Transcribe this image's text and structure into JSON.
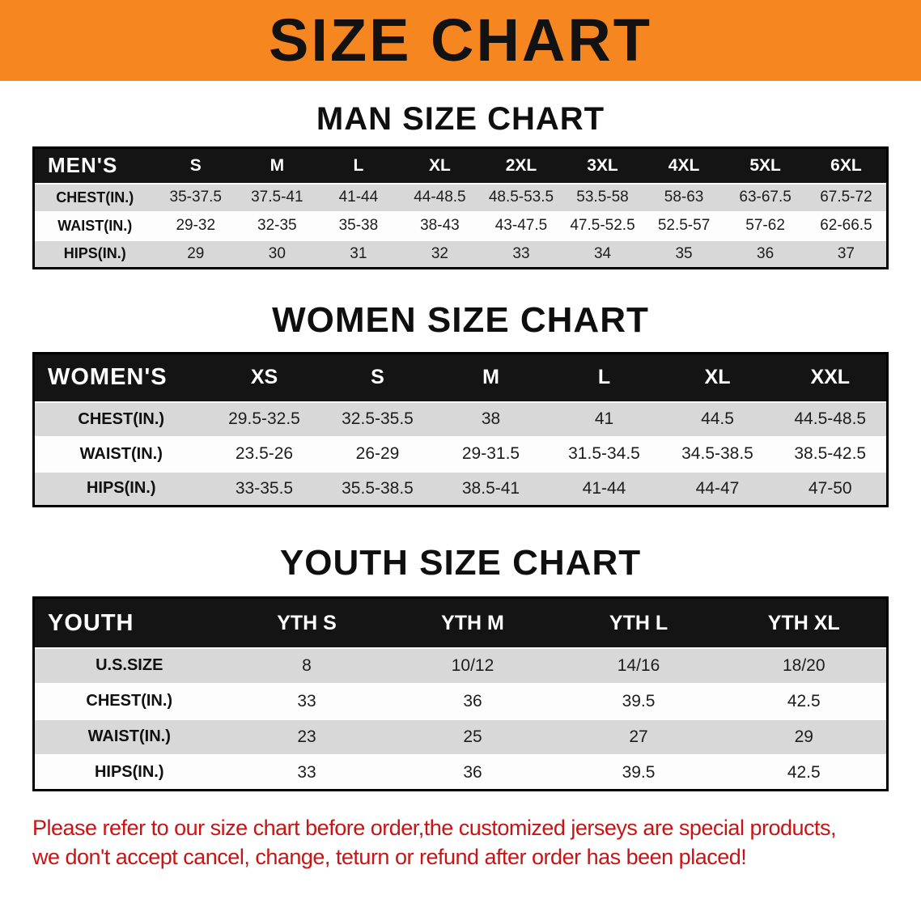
{
  "banner": {
    "title": "SIZE CHART"
  },
  "colors": {
    "banner_bg": "#f6861f",
    "header_bg": "#141414",
    "stripe": "#d8d8d8",
    "disclaimer_red": "#c81414"
  },
  "sections": [
    {
      "id": "men",
      "title": "MAN SIZE CHART",
      "table": {
        "header": [
          "MEN'S",
          "S",
          "M",
          "L",
          "XL",
          "2XL",
          "3XL",
          "4XL",
          "5XL",
          "6XL"
        ],
        "rows": [
          [
            "CHEST(IN.)",
            "35-37.5",
            "37.5-41",
            "41-44",
            "44-48.5",
            "48.5-53.5",
            "53.5-58",
            "58-63",
            "63-67.5",
            "67.5-72"
          ],
          [
            "WAIST(IN.)",
            "29-32",
            "32-35",
            "35-38",
            "38-43",
            "43-47.5",
            "47.5-52.5",
            "52.5-57",
            "57-62",
            "62-66.5"
          ],
          [
            "HIPS(IN.)",
            "29",
            "30",
            "31",
            "32",
            "33",
            "34",
            "35",
            "36",
            "37"
          ]
        ]
      }
    },
    {
      "id": "women",
      "title": "WOMEN SIZE CHART",
      "table": {
        "header": [
          "WOMEN'S",
          "XS",
          "S",
          "M",
          "L",
          "XL",
          "XXL"
        ],
        "rows": [
          [
            "CHEST(IN.)",
            "29.5-32.5",
            "32.5-35.5",
            "38",
            "41",
            "44.5",
            "44.5-48.5"
          ],
          [
            "WAIST(IN.)",
            "23.5-26",
            "26-29",
            "29-31.5",
            "31.5-34.5",
            "34.5-38.5",
            "38.5-42.5"
          ],
          [
            "HIPS(IN.)",
            "33-35.5",
            "35.5-38.5",
            "38.5-41",
            "41-44",
            "44-47",
            "47-50"
          ]
        ]
      }
    },
    {
      "id": "youth",
      "title": "YOUTH SIZE CHART",
      "table": {
        "header": [
          "YOUTH",
          "YTH S",
          "YTH M",
          "YTH L",
          "YTH XL"
        ],
        "rows": [
          [
            "U.S.SIZE",
            "8",
            "10/12",
            "14/16",
            "18/20"
          ],
          [
            "CHEST(IN.)",
            "33",
            "36",
            "39.5",
            "42.5"
          ],
          [
            "WAIST(IN.)",
            "23",
            "25",
            "27",
            "29"
          ],
          [
            "HIPS(IN.)",
            "33",
            "36",
            "39.5",
            "42.5"
          ]
        ]
      }
    }
  ],
  "footer": {
    "line1": "Please refer to our size chart before order,the customized jerseys are special products,",
    "line2": "we don't accept cancel, change, teturn or refund after order has been placed!"
  }
}
